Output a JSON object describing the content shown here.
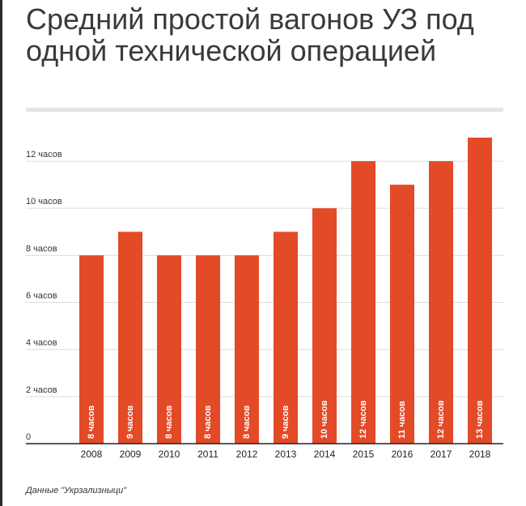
{
  "title": "Средний простой вагонов УЗ под одной технической операцией",
  "source": "Данные \"Укрзализныци\"",
  "colors": {
    "bar": "#e34a27",
    "grid": "#dddddd",
    "axis": "#222222",
    "rule": "#e4e4e4"
  },
  "chart_data": {
    "type": "bar",
    "title": "Средний простой вагонов УЗ под одной технической операцией",
    "xlabel": "",
    "ylabel": "",
    "categories": [
      "2008",
      "2009",
      "2010",
      "2011",
      "2012",
      "2013",
      "2014",
      "2015",
      "2016",
      "2017",
      "2018"
    ],
    "values": [
      8,
      9,
      8,
      8,
      8,
      9,
      10,
      12,
      11,
      12,
      13
    ],
    "data_labels": [
      "8 часов",
      "9 часов",
      "8 часов",
      "8 часов",
      "8 часов",
      "9 часов",
      "10 часов",
      "12 часов",
      "11 часов",
      "12 часов",
      "13 часов"
    ],
    "ylim": [
      0,
      13
    ],
    "yticks": [
      0,
      2,
      4,
      6,
      8,
      10,
      12
    ],
    "ytick_labels": [
      "0",
      "2 часов",
      "4 часов",
      "6 часов",
      "8 часов",
      "10 часов",
      "12 часов"
    ],
    "grid": true,
    "legend": "none"
  }
}
